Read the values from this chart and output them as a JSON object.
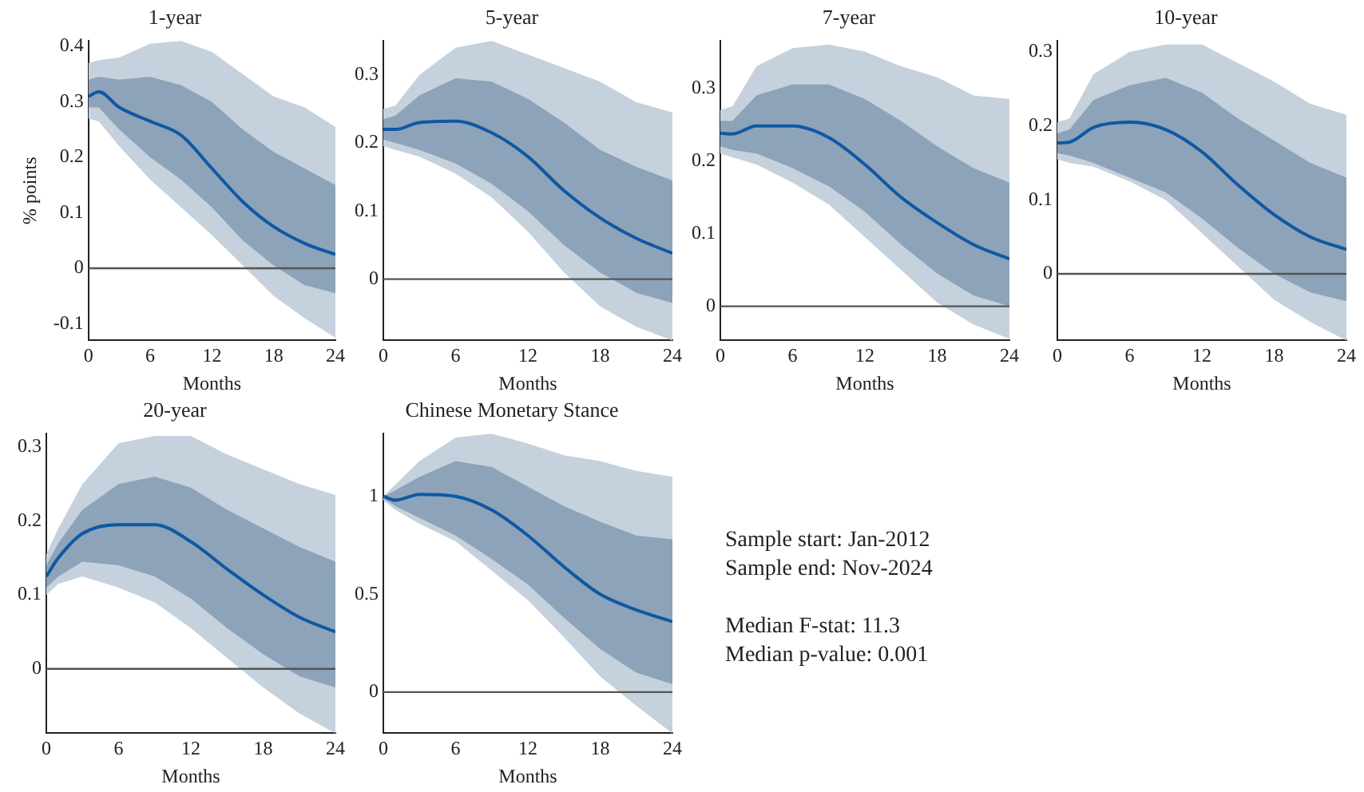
{
  "chart_data": [
    {
      "type": "line",
      "title": "1-year",
      "xlabel": "Months",
      "ylabel": "% points",
      "xlim": [
        0,
        24
      ],
      "xticks": [
        0,
        6,
        12,
        18,
        24
      ],
      "ylim": [
        -0.13,
        0.41
      ],
      "yticks": [
        -0.1,
        0,
        0.1,
        0.2,
        0.3,
        0.4
      ],
      "x": [
        0,
        1,
        3,
        6,
        9,
        12,
        15,
        18,
        21,
        24
      ],
      "ref_lines": [
        {
          "axis": "y",
          "value": 0,
          "color": "#555555"
        }
      ],
      "series": [
        {
          "color": "#c5d1dc",
          "values": [
            null,
            null,
            null,
            null,
            null,
            null,
            null,
            null,
            null,
            null
          ],
          "lower": [
            0.27,
            0.265,
            0.22,
            0.16,
            0.11,
            0.06,
            0.005,
            -0.05,
            -0.09,
            -0.125
          ],
          "upper": [
            0.37,
            0.375,
            0.38,
            0.405,
            0.41,
            0.39,
            0.35,
            0.31,
            0.29,
            0.255
          ]
        },
        {
          "color": "#8ca3b9",
          "values": [
            null,
            null,
            null,
            null,
            null,
            null,
            null,
            null,
            null,
            null
          ],
          "lower": [
            0.29,
            0.29,
            0.25,
            0.2,
            0.16,
            0.11,
            0.05,
            0.005,
            -0.03,
            -0.045
          ],
          "upper": [
            0.34,
            0.345,
            0.34,
            0.345,
            0.33,
            0.3,
            0.25,
            0.21,
            0.18,
            0.15
          ]
        },
        {
          "color": "#0f58a3",
          "values": [
            0.31,
            0.318,
            0.29,
            0.265,
            0.24,
            0.18,
            0.12,
            0.075,
            0.045,
            0.025
          ]
        }
      ]
    },
    {
      "type": "line",
      "title": "5-year",
      "xlabel": "Months",
      "xlim": [
        0,
        24
      ],
      "xticks": [
        0,
        6,
        12,
        18,
        24
      ],
      "ylim": [
        -0.09,
        0.35
      ],
      "yticks": [
        0,
        0.1,
        0.2,
        0.3
      ],
      "x": [
        0,
        1,
        3,
        6,
        9,
        12,
        15,
        18,
        21,
        24
      ],
      "ref_lines": [
        {
          "axis": "y",
          "value": 0,
          "color": "#555555"
        }
      ],
      "series": [
        {
          "color": "#c5d1dc",
          "values": [
            null,
            null,
            null,
            null,
            null,
            null,
            null,
            null,
            null,
            null
          ],
          "lower": [
            0.195,
            0.19,
            0.18,
            0.155,
            0.12,
            0.07,
            0.01,
            -0.04,
            -0.07,
            -0.09
          ],
          "upper": [
            0.25,
            0.255,
            0.3,
            0.34,
            0.35,
            0.33,
            0.31,
            0.29,
            0.26,
            0.245
          ]
        },
        {
          "color": "#8ca3b9",
          "values": [
            null,
            null,
            null,
            null,
            null,
            null,
            null,
            null,
            null,
            null
          ],
          "lower": [
            0.205,
            0.2,
            0.19,
            0.17,
            0.14,
            0.1,
            0.05,
            0.01,
            -0.02,
            -0.035
          ],
          "upper": [
            0.235,
            0.24,
            0.27,
            0.295,
            0.29,
            0.265,
            0.23,
            0.19,
            0.165,
            0.145
          ]
        },
        {
          "color": "#0f58a3",
          "values": [
            0.22,
            0.22,
            0.23,
            0.232,
            0.215,
            0.18,
            0.13,
            0.09,
            0.06,
            0.038
          ]
        }
      ]
    },
    {
      "type": "line",
      "title": "7-year",
      "xlabel": "Months",
      "xlim": [
        0,
        24
      ],
      "xticks": [
        0,
        6,
        12,
        18,
        24
      ],
      "ylim": [
        -0.047,
        0.365
      ],
      "yticks": [
        0,
        0.1,
        0.2,
        0.3
      ],
      "x": [
        0,
        1,
        3,
        6,
        9,
        12,
        15,
        18,
        21,
        24
      ],
      "ref_lines": [
        {
          "axis": "y",
          "value": 0,
          "color": "#555555"
        }
      ],
      "series": [
        {
          "color": "#c5d1dc",
          "values": [
            null,
            null,
            null,
            null,
            null,
            null,
            null,
            null,
            null,
            null
          ],
          "lower": [
            0.21,
            0.205,
            0.195,
            0.17,
            0.14,
            0.095,
            0.05,
            0.005,
            -0.025,
            -0.045
          ],
          "upper": [
            0.27,
            0.275,
            0.33,
            0.355,
            0.36,
            0.35,
            0.33,
            0.315,
            0.29,
            0.285
          ]
        },
        {
          "color": "#8ca3b9",
          "values": [
            null,
            null,
            null,
            null,
            null,
            null,
            null,
            null,
            null,
            null
          ],
          "lower": [
            0.22,
            0.215,
            0.21,
            0.19,
            0.165,
            0.13,
            0.085,
            0.045,
            0.015,
            0.0
          ],
          "upper": [
            0.255,
            0.255,
            0.29,
            0.305,
            0.305,
            0.285,
            0.255,
            0.22,
            0.19,
            0.17
          ]
        },
        {
          "color": "#0f58a3",
          "values": [
            0.238,
            0.237,
            0.248,
            0.248,
            0.232,
            0.195,
            0.15,
            0.115,
            0.085,
            0.065
          ]
        }
      ]
    },
    {
      "type": "line",
      "title": "10-year",
      "xlabel": "Months",
      "xlim": [
        0,
        24
      ],
      "xticks": [
        0,
        6,
        12,
        18,
        24
      ],
      "ylim": [
        -0.09,
        0.315
      ],
      "yticks": [
        0,
        0.1,
        0.2,
        0.3
      ],
      "x": [
        0,
        1,
        3,
        6,
        9,
        12,
        15,
        18,
        21,
        24
      ],
      "ref_lines": [
        {
          "axis": "y",
          "value": 0,
          "color": "#555555"
        }
      ],
      "series": [
        {
          "color": "#c5d1dc",
          "values": [
            null,
            null,
            null,
            null,
            null,
            null,
            null,
            null,
            null,
            null
          ],
          "lower": [
            0.155,
            0.15,
            0.145,
            0.125,
            0.1,
            0.055,
            0.01,
            -0.035,
            -0.065,
            -0.09
          ],
          "upper": [
            0.205,
            0.21,
            0.27,
            0.3,
            0.31,
            0.31,
            0.285,
            0.26,
            0.23,
            0.215
          ]
        },
        {
          "color": "#8ca3b9",
          "values": [
            null,
            null,
            null,
            null,
            null,
            null,
            null,
            null,
            null,
            null
          ],
          "lower": [
            0.163,
            0.16,
            0.15,
            0.13,
            0.11,
            0.075,
            0.035,
            0.0,
            -0.025,
            -0.037
          ],
          "upper": [
            0.19,
            0.195,
            0.235,
            0.255,
            0.265,
            0.245,
            0.21,
            0.18,
            0.15,
            0.13
          ]
        },
        {
          "color": "#0f58a3",
          "values": [
            0.177,
            0.178,
            0.198,
            0.205,
            0.195,
            0.165,
            0.12,
            0.08,
            0.05,
            0.033
          ]
        }
      ]
    },
    {
      "type": "line",
      "title": "20-year",
      "xlabel": "Months",
      "xlim": [
        0,
        24
      ],
      "xticks": [
        0,
        6,
        12,
        18,
        24
      ],
      "ylim": [
        -0.087,
        0.318
      ],
      "yticks": [
        0,
        0.1,
        0.2,
        0.3
      ],
      "x": [
        0,
        1,
        3,
        6,
        9,
        12,
        15,
        18,
        21,
        24
      ],
      "ref_lines": [
        {
          "axis": "y",
          "value": 0,
          "color": "#555555"
        }
      ],
      "series": [
        {
          "color": "#c5d1dc",
          "values": [
            null,
            null,
            null,
            null,
            null,
            null,
            null,
            null,
            null,
            null
          ],
          "lower": [
            0.1,
            0.115,
            0.125,
            0.11,
            0.09,
            0.055,
            0.015,
            -0.025,
            -0.06,
            -0.087
          ],
          "upper": [
            0.155,
            0.19,
            0.25,
            0.305,
            0.315,
            0.315,
            0.29,
            0.27,
            0.25,
            0.235
          ]
        },
        {
          "color": "#8ca3b9",
          "values": [
            null,
            null,
            null,
            null,
            null,
            null,
            null,
            null,
            null,
            null
          ],
          "lower": [
            0.11,
            0.125,
            0.145,
            0.14,
            0.125,
            0.095,
            0.055,
            0.02,
            -0.01,
            -0.025
          ],
          "upper": [
            0.14,
            0.17,
            0.215,
            0.25,
            0.26,
            0.245,
            0.215,
            0.19,
            0.165,
            0.145
          ]
        },
        {
          "color": "#0f58a3",
          "values": [
            0.125,
            0.15,
            0.183,
            0.195,
            0.195,
            0.172,
            0.135,
            0.1,
            0.07,
            0.05
          ]
        }
      ]
    },
    {
      "type": "line",
      "title": "Chinese Monetary Stance",
      "xlabel": "Months",
      "xlim": [
        0,
        24
      ],
      "xticks": [
        0,
        6,
        12,
        18,
        24
      ],
      "ylim": [
        -0.21,
        1.32
      ],
      "yticks": [
        0,
        0.5,
        1
      ],
      "x": [
        0,
        1,
        3,
        6,
        9,
        12,
        15,
        18,
        21,
        24
      ],
      "ref_lines": [
        {
          "axis": "y",
          "value": 0,
          "color": "#555555"
        }
      ],
      "series": [
        {
          "color": "#c5d1dc",
          "values": [
            null,
            null,
            null,
            null,
            null,
            null,
            null,
            null,
            null,
            null
          ],
          "lower": [
            0.98,
            0.93,
            0.86,
            0.77,
            0.62,
            0.47,
            0.28,
            0.08,
            -0.07,
            -0.21
          ],
          "upper": [
            1.0,
            1.06,
            1.18,
            1.3,
            1.32,
            1.27,
            1.21,
            1.18,
            1.13,
            1.1
          ]
        },
        {
          "color": "#8ca3b9",
          "values": [
            null,
            null,
            null,
            null,
            null,
            null,
            null,
            null,
            null,
            null
          ],
          "lower": [
            0.99,
            0.95,
            0.89,
            0.8,
            0.68,
            0.55,
            0.38,
            0.22,
            0.1,
            0.04
          ],
          "upper": [
            1.0,
            1.03,
            1.1,
            1.18,
            1.15,
            1.05,
            0.95,
            0.87,
            0.8,
            0.78
          ]
        },
        {
          "color": "#0f58a3",
          "values": [
            1.0,
            0.98,
            1.01,
            1.0,
            0.93,
            0.8,
            0.64,
            0.5,
            0.42,
            0.36
          ]
        }
      ]
    },
    {
      "type": "other",
      "annotations": [
        "Sample start:  Jan-2012",
        "Sample end:  Nov-2024",
        "Median F-stat:  11.3",
        "Median p-value:  0.001"
      ]
    }
  ]
}
